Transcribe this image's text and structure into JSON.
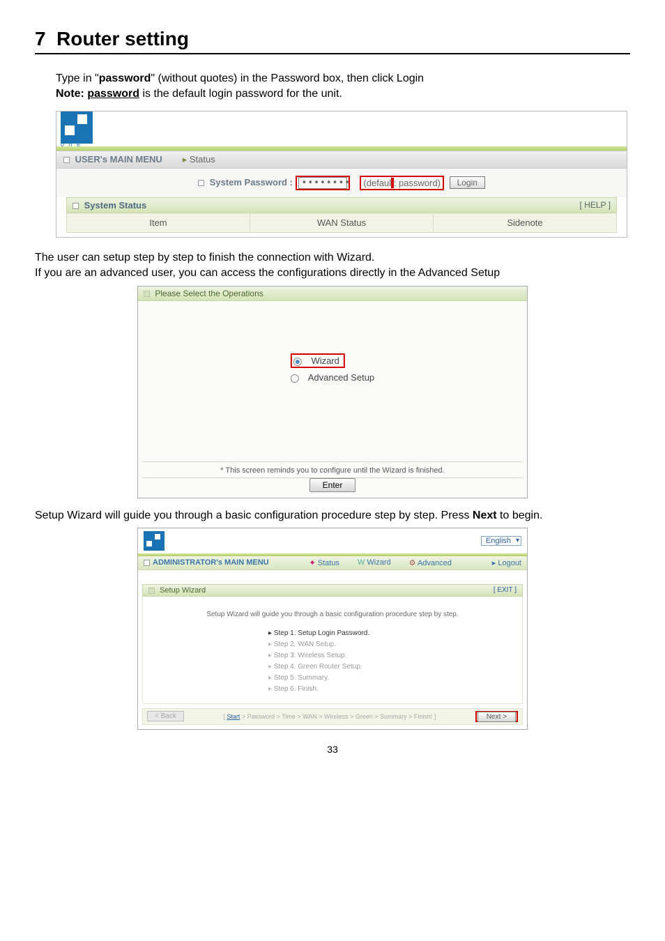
{
  "section": {
    "number": "7",
    "title": "Router setting"
  },
  "intro": {
    "line1_a": "Type in \"",
    "line1_b": "password",
    "line1_c": "\" (without quotes) in the Password box, then click Login",
    "note_label": "Note: ",
    "note_word": "password",
    "note_rest": " is the default login password for the unit."
  },
  "shot1": {
    "menu_label": "USER's MAIN MENU",
    "status_label": "Status",
    "pw_label": "System Password :",
    "pw_value": "••••••••",
    "default_text": "(default: password)",
    "login_label": "Login",
    "system_status": "System Status",
    "help": "[ HELP ]",
    "col1": "Item",
    "col2": "WAN Status",
    "col3": "Sidenote",
    "icon_name": "page-icon"
  },
  "mid_text": {
    "line1": "The user can setup step by step to finish the connection with Wizard.",
    "line2": "If you are an advanced user, you can access the configurations directly in the Advanced Setup"
  },
  "shot2": {
    "head": "Please Select the Operations",
    "opt_wizard": "Wizard",
    "opt_advanced": "Advanced Setup",
    "note": "* This screen reminds you to configure until the Wizard is finished.",
    "enter": "Enter"
  },
  "after2": {
    "text_a": "Setup Wizard will guide you through a basic configuration procedure step by step. Press ",
    "text_b": "Next",
    "text_c": " to begin."
  },
  "shot3": {
    "lang": "English",
    "admin_menu": "ADMINISTRATOR's MAIN MENU",
    "tab_status": "Status",
    "tab_wizard": "Wizard",
    "tab_advanced": "Advanced",
    "logout": "Logout",
    "panel_head": "Setup Wizard",
    "exit": "[ EXIT ]",
    "intro": "Setup Wizard will guide you through a basic configuration procedure step by step.",
    "steps": {
      "s1": "Step 1. Setup Login Password.",
      "s2": "Step 2. WAN Setup.",
      "s3": "Step 3. Wireless Setup.",
      "s4": "Step 4. Green Router Setup.",
      "s5": "Step 5. Summary.",
      "s6": "Step 6. Finish."
    },
    "back": "< Back",
    "crumbs_start": "Start",
    "crumbs_rest": " > Password > Time > WAN > Wireless > Green > Summary > Finish! ]",
    "next": "Next >"
  },
  "page_number": "33",
  "colors": {
    "brand_blue": "#1a74b4",
    "red_highlight": "#d40000",
    "melon_green_light": "#d3e6a0",
    "melon_green_dark": "#b5d266"
  }
}
